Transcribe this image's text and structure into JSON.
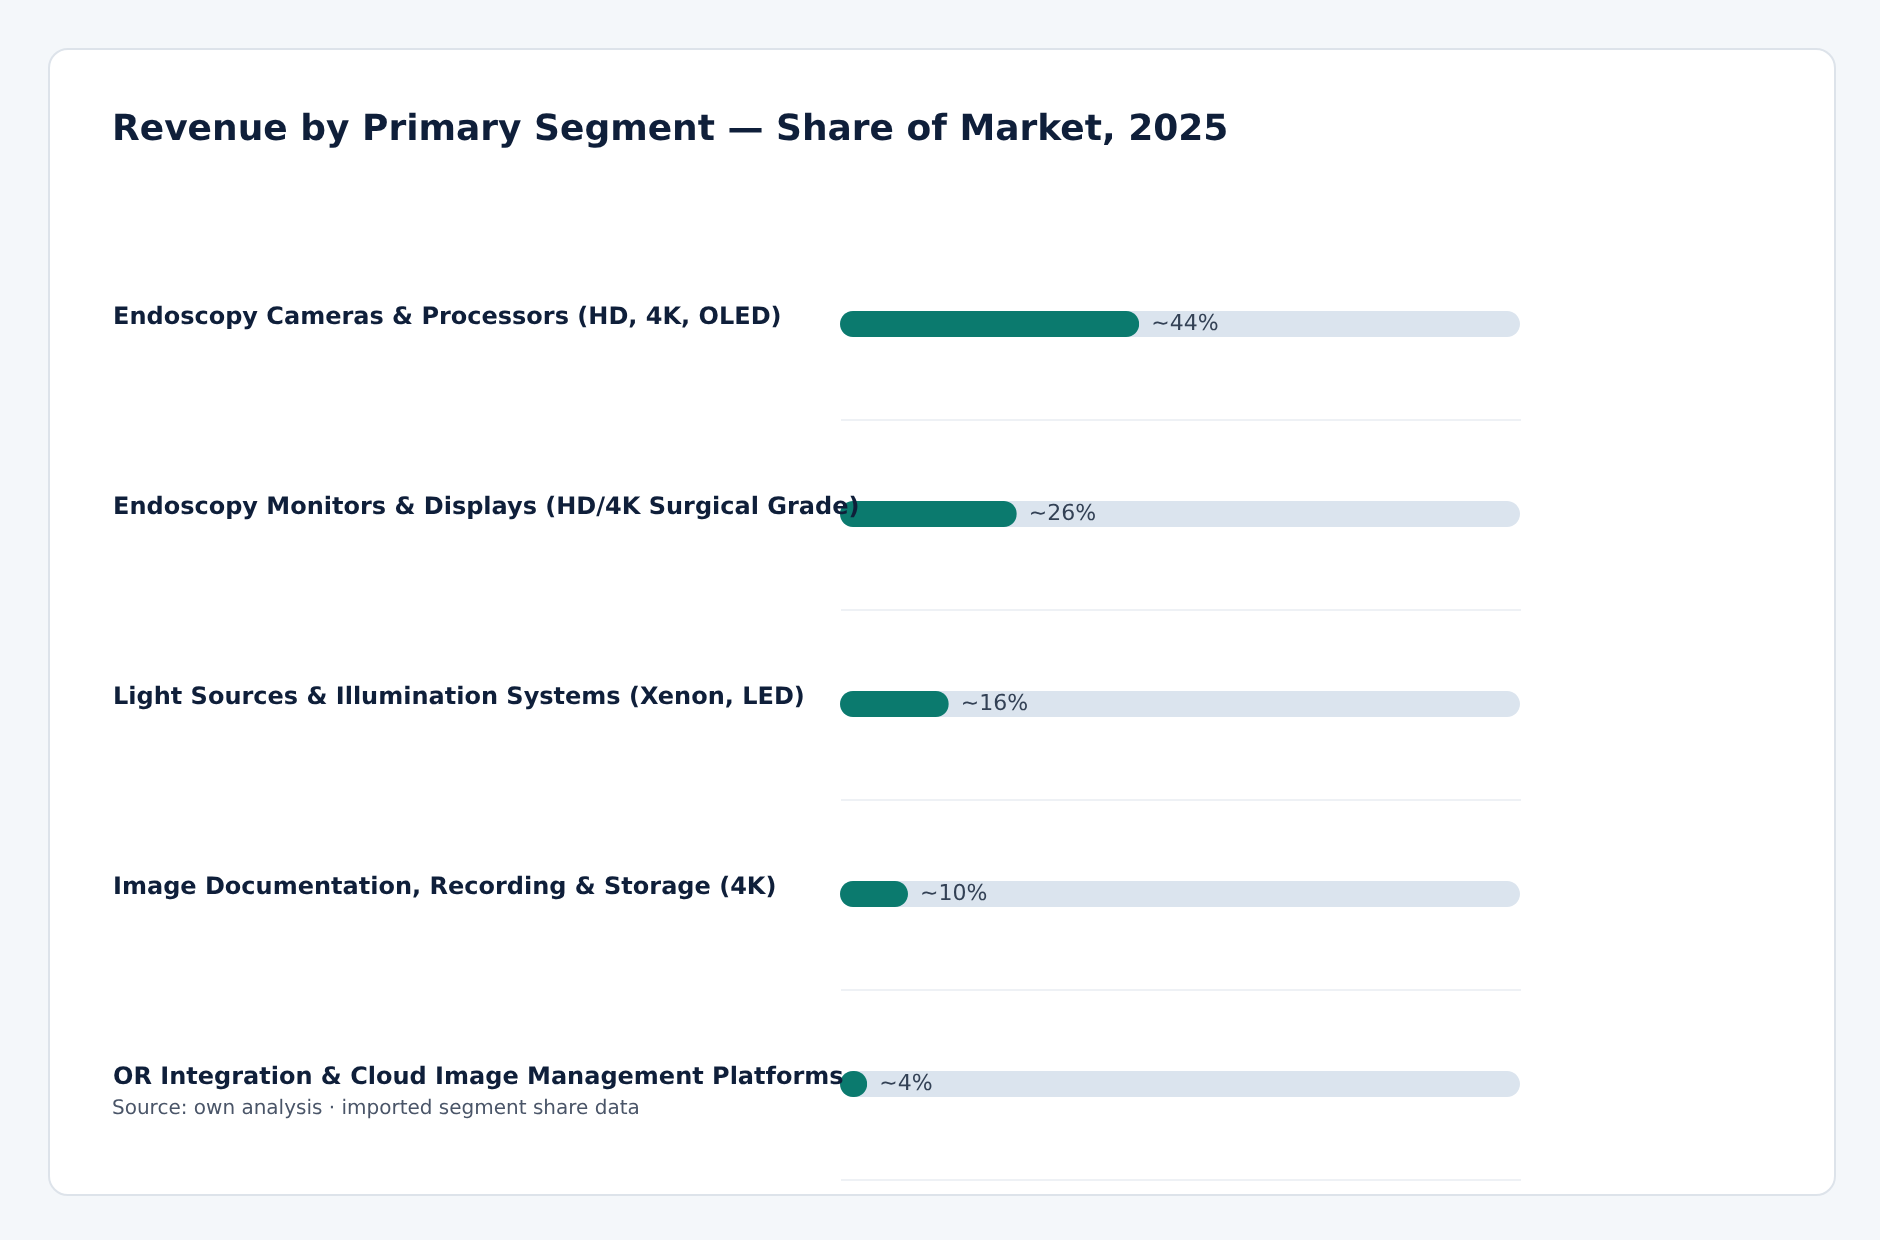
{
  "chart_data": {
    "type": "bar",
    "orientation": "horizontal",
    "title": "Revenue by Primary Segment — Share of Market, 2025",
    "categories": [
      "Endoscopy Cameras & Processors (HD, 4K, OLED)",
      "Endoscopy Monitors & Displays (HD/4K Surgical Grade)",
      "Light Sources & Illumination Systems (Xenon, LED)",
      "Image Documentation, Recording & Storage (4K)",
      "OR Integration & Cloud Image Management Platforms"
    ],
    "values": [
      44,
      26,
      16,
      10,
      4
    ],
    "value_labels": [
      "~44%",
      "~26%",
      "~16%",
      "~10%",
      "~4%"
    ],
    "color": "#0b7a6e",
    "xlim": [
      0,
      100
    ],
    "tick_labels": "y",
    "grid": "y",
    "annotations": [
      "Source: own analysis · imported segment share data"
    ]
  }
}
